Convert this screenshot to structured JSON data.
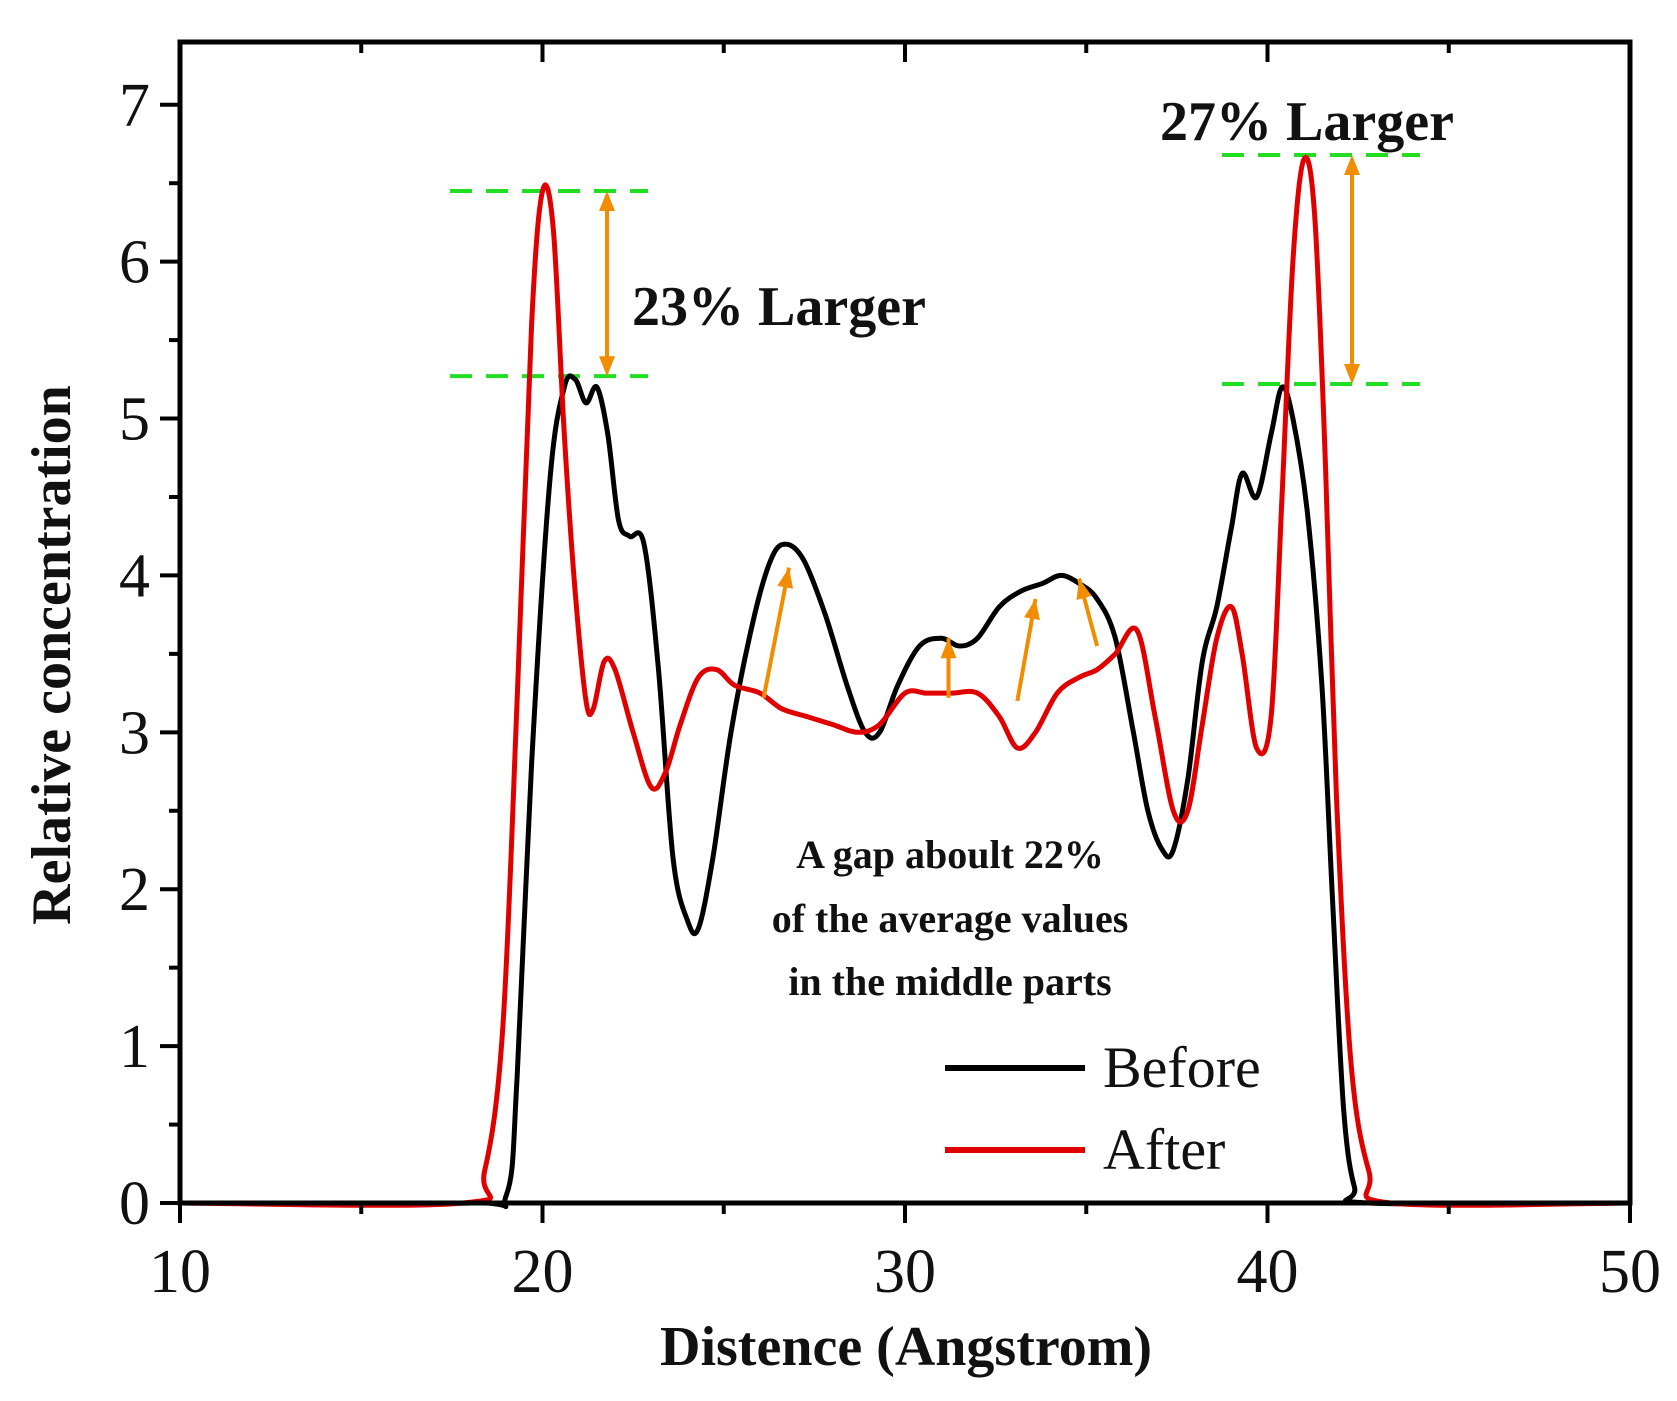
{
  "chart_data": {
    "type": "line",
    "xlabel": "Distence (Angstrom)",
    "ylabel": "Relative concentration",
    "xlim": [
      10,
      50
    ],
    "ylim": [
      0,
      7.4
    ],
    "x_ticks": [
      10,
      20,
      30,
      40,
      50
    ],
    "y_ticks": [
      0,
      1,
      2,
      3,
      4,
      5,
      6,
      7
    ],
    "grid": false,
    "legend_position": "bottom-right",
    "series": [
      {
        "name": "Before",
        "color": "#000000",
        "x": [
          10,
          18,
          19,
          19.3,
          19.7,
          20.2,
          20.6,
          20.9,
          21.2,
          21.5,
          21.8,
          22.1,
          22.4,
          22.8,
          23.2,
          23.6,
          24.0,
          24.3,
          24.7,
          25.2,
          25.8,
          26.3,
          26.7,
          27.2,
          27.8,
          28.4,
          28.9,
          29.3,
          29.8,
          30.4,
          31.0,
          31.5,
          32.0,
          32.6,
          33.2,
          33.8,
          34.3,
          34.8,
          35.3,
          35.8,
          36.3,
          36.7,
          37.1,
          37.4,
          37.8,
          38.2,
          38.6,
          39.0,
          39.3,
          39.7,
          40.1,
          40.4,
          40.7,
          41.1,
          41.5,
          41.8,
          42.1,
          42.4,
          42.8,
          50
        ],
        "y": [
          0,
          0,
          0.05,
          0.8,
          2.8,
          4.6,
          5.2,
          5.25,
          5.1,
          5.2,
          4.9,
          4.35,
          4.25,
          4.2,
          3.4,
          2.2,
          1.8,
          1.75,
          2.2,
          3.0,
          3.7,
          4.1,
          4.2,
          4.1,
          3.75,
          3.3,
          3.0,
          3.0,
          3.3,
          3.55,
          3.6,
          3.55,
          3.6,
          3.8,
          3.9,
          3.95,
          4.0,
          3.95,
          3.85,
          3.6,
          3.0,
          2.5,
          2.25,
          2.25,
          2.7,
          3.45,
          3.8,
          4.3,
          4.65,
          4.5,
          4.9,
          5.2,
          5.0,
          4.4,
          3.3,
          1.9,
          0.6,
          0.1,
          0,
          0
        ]
      },
      {
        "name": "After",
        "color": "#e00000",
        "x": [
          10,
          17.8,
          18.4,
          18.9,
          19.3,
          19.7,
          20.0,
          20.3,
          20.6,
          20.9,
          21.2,
          21.4,
          21.7,
          22.0,
          22.5,
          23.0,
          23.4,
          23.8,
          24.3,
          24.8,
          25.3,
          26.0,
          26.6,
          27.3,
          28.0,
          28.7,
          29.3,
          30.0,
          30.6,
          31.3,
          32.0,
          32.6,
          33.1,
          33.6,
          34.2,
          34.8,
          35.3,
          35.8,
          36.4,
          36.9,
          37.4,
          37.8,
          38.2,
          38.6,
          39.0,
          39.3,
          39.7,
          40.1,
          40.4,
          40.7,
          41.0,
          41.3,
          41.6,
          41.9,
          42.3,
          42.8,
          43.4,
          50
        ],
        "y": [
          0,
          0,
          0.2,
          1.1,
          3.2,
          5.6,
          6.45,
          6.2,
          4.9,
          3.9,
          3.2,
          3.15,
          3.45,
          3.4,
          3.0,
          2.65,
          2.75,
          3.05,
          3.35,
          3.4,
          3.3,
          3.25,
          3.15,
          3.1,
          3.05,
          3.0,
          3.05,
          3.25,
          3.25,
          3.25,
          3.25,
          3.1,
          2.9,
          3.0,
          3.25,
          3.35,
          3.4,
          3.5,
          3.65,
          3.1,
          2.5,
          2.5,
          3.05,
          3.6,
          3.8,
          3.5,
          2.9,
          3.1,
          4.5,
          6.0,
          6.65,
          6.3,
          4.7,
          2.6,
          0.9,
          0.2,
          0,
          0
        ]
      }
    ],
    "annotations": {
      "left_label": "23% Larger",
      "right_label": "27% Larger",
      "gap_lines": [
        "A gap aboult 22%",
        "of the average values",
        "in the middle parts"
      ]
    }
  }
}
